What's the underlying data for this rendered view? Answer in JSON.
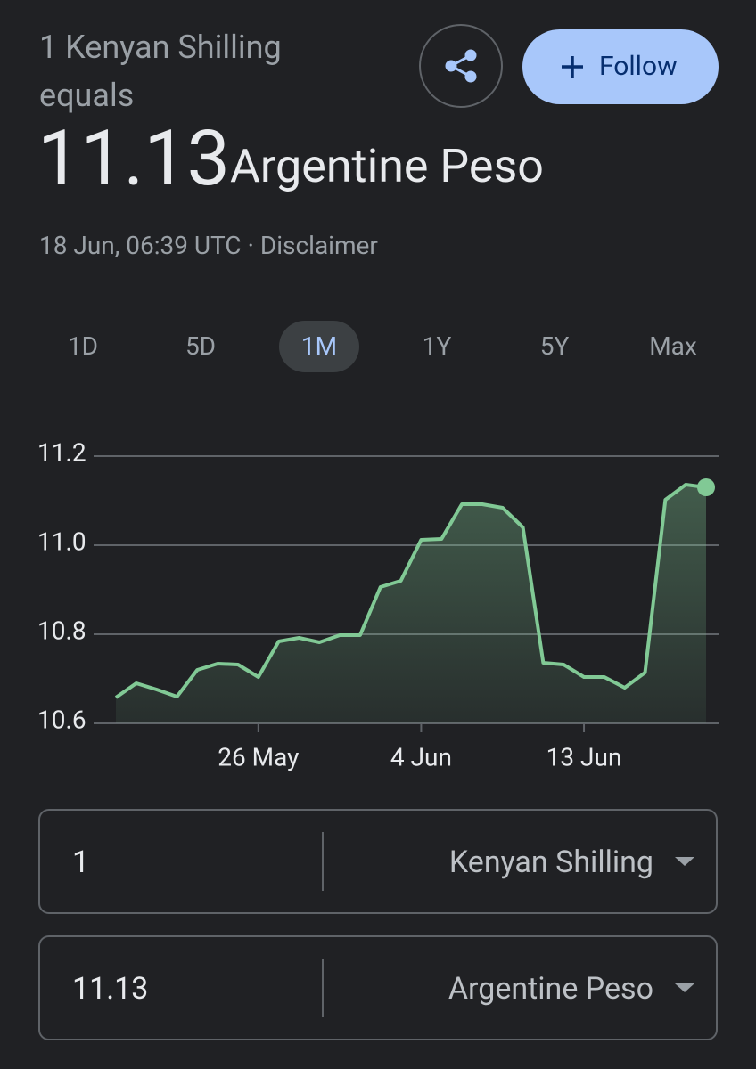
{
  "header": {
    "subtitle": "1 Kenyan Shilling equals",
    "rate": "11.13",
    "currency": "Argentine Peso",
    "timestamp": "18 Jun, 06:39 UTC",
    "separator": "·",
    "disclaimer": "Disclaimer",
    "follow": "Follow"
  },
  "tabs": [
    "1D",
    "5D",
    "1M",
    "1Y",
    "5Y",
    "Max"
  ],
  "selected_tab": "1M",
  "chart_data": {
    "type": "line",
    "color": "#81c995",
    "categories": [
      null,
      null,
      null,
      null,
      null,
      null,
      null,
      "26 May",
      null,
      null,
      null,
      null,
      null,
      null,
      null,
      "4 Jun",
      null,
      null,
      null,
      null,
      null,
      null,
      null,
      "13 Jun",
      null,
      null,
      null,
      null,
      null,
      null
    ],
    "values": [
      10.658,
      10.69,
      10.676,
      10.66,
      10.72,
      10.734,
      10.732,
      10.704,
      10.784,
      10.792,
      10.782,
      10.798,
      10.798,
      10.906,
      10.92,
      11.012,
      11.014,
      11.092,
      11.092,
      11.084,
      11.04,
      10.736,
      10.732,
      10.704,
      10.704,
      10.68,
      10.714,
      11.102,
      11.136,
      11.13
    ],
    "ylim": [
      10.6,
      11.2
    ],
    "yticks": [
      10.6,
      10.8,
      {
        "value": 11,
        "label": "11.0"
      },
      11.2
    ],
    "grid": true
  },
  "converter": [
    {
      "amount": "1",
      "currency": "Kenyan Shilling"
    },
    {
      "amount": "11.13",
      "currency": "Argentine Peso"
    }
  ]
}
